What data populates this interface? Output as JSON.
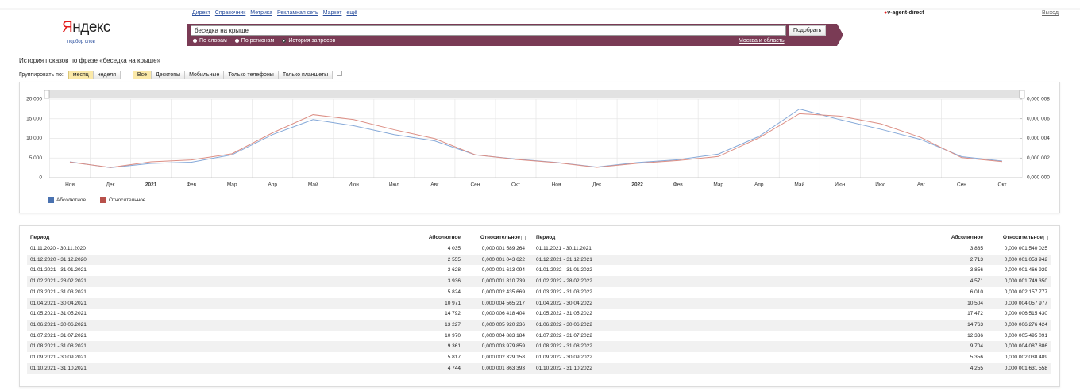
{
  "nav": {
    "links": [
      "Директ",
      "Справочник",
      "Метрика",
      "Рекламная сеть",
      "Маркет",
      "ещё"
    ],
    "user": "v-agent-direct",
    "logout": "Выход"
  },
  "logo": {
    "name": "Яндекс",
    "subtitle": "подбор слов"
  },
  "search": {
    "query": "беседка на крыше",
    "button": "Подобрать",
    "modes": [
      "По словам",
      "По регионам",
      "История запросов"
    ],
    "region": "Москва и область"
  },
  "heading": "История показов по фразе «беседка на крыше»",
  "grouping": {
    "label": "Группировать по:",
    "options": [
      "месяц",
      "неделя"
    ]
  },
  "devices": [
    "Все",
    "Десктопы",
    "Мобильные",
    "Только телефоны",
    "Только планшеты"
  ],
  "chart_data": {
    "type": "line",
    "categories": [
      "Ноя",
      "Дек",
      "2021",
      "Фев",
      "Мар",
      "Апр",
      "Май",
      "Июн",
      "Июл",
      "Авг",
      "Сен",
      "Окт",
      "Ноя",
      "Дек",
      "2022",
      "Фев",
      "Мар",
      "Апр",
      "Май",
      "Июн",
      "Июл",
      "Авг",
      "Сен",
      "Окт"
    ],
    "series": [
      {
        "name": "Абсолютное",
        "color": "#4a72b0",
        "line_color": "#86a9d8",
        "values": [
          4035,
          2555,
          3628,
          3936,
          5824,
          10971,
          14792,
          13227,
          10970,
          9361,
          5817,
          4744,
          3885,
          2713,
          3856,
          4571,
          6010,
          10504,
          17472,
          14763,
          12336,
          9704,
          5356,
          4255
        ]
      },
      {
        "name": "Относительное",
        "color": "#b8504a",
        "line_color": "#dc8e84",
        "axis": "y2",
        "values": [
          1.589264e-06,
          1.043622e-06,
          1.613094e-06,
          1.810739e-06,
          2.435669e-06,
          4.565217e-06,
          6.418404e-06,
          5.920236e-06,
          4.883184e-06,
          3.979859e-06,
          2.329158e-06,
          1.863393e-06,
          1.540025e-06,
          1.053942e-06,
          1.466929e-06,
          1.74935e-06,
          2.157777e-06,
          4.057977e-06,
          6.51543e-06,
          6.276424e-06,
          5.495091e-06,
          4.087886e-06,
          2.038489e-06,
          1.631558e-06
        ]
      }
    ],
    "ylim": [
      0,
      20000
    ],
    "yticks": [
      0,
      {
        "value": 5000,
        "label": "5 000"
      },
      {
        "value": 10000,
        "label": "10 000"
      },
      {
        "value": 15000,
        "label": "15 000"
      },
      {
        "value": 20000,
        "label": "20 000"
      }
    ],
    "y2lim": [
      0,
      8e-06
    ],
    "y2ticks": [
      {
        "value": 0,
        "label": "0,000 000"
      },
      {
        "value": 2e-06,
        "label": "0,000 002"
      },
      {
        "value": 4e-06,
        "label": "0,000 004"
      },
      {
        "value": 6e-06,
        "label": "0,000 006"
      },
      {
        "value": 8e-06,
        "label": "0,000 008"
      }
    ],
    "grid": true
  },
  "table": {
    "columns": [
      "Период",
      "Абсолютное",
      "Относительное"
    ],
    "rows": [
      [
        "01.11.2020 - 30.11.2020",
        "4 035",
        "0,000 001 589 264"
      ],
      [
        "01.12.2020 - 31.12.2020",
        "2 555",
        "0,000 001 043 622"
      ],
      [
        "01.01.2021 - 31.01.2021",
        "3 628",
        "0,000 001 613 094"
      ],
      [
        "01.02.2021 - 28.02.2021",
        "3 936",
        "0,000 001 810 739"
      ],
      [
        "01.03.2021 - 31.03.2021",
        "5 824",
        "0,000 002 435 669"
      ],
      [
        "01.04.2021 - 30.04.2021",
        "10 971",
        "0,000 004 565 217"
      ],
      [
        "01.05.2021 - 31.05.2021",
        "14 792",
        "0,000 006 418 404"
      ],
      [
        "01.06.2021 - 30.06.2021",
        "13 227",
        "0,000 005 920 236"
      ],
      [
        "01.07.2021 - 31.07.2021",
        "10 970",
        "0,000 004 883 184"
      ],
      [
        "01.08.2021 - 31.08.2021",
        "9 361",
        "0,000 003 979 859"
      ],
      [
        "01.09.2021 - 30.09.2021",
        "5 817",
        "0,000 002 329 158"
      ],
      [
        "01.10.2021 - 31.10.2021",
        "4 744",
        "0,000 001 863 393"
      ],
      [
        "01.11.2021 - 30.11.2021",
        "3 885",
        "0,000 001 540 025"
      ],
      [
        "01.12.2021 - 31.12.2021",
        "2 713",
        "0,000 001 053 942"
      ],
      [
        "01.01.2022 - 31.01.2022",
        "3 856",
        "0,000 001 466 929"
      ],
      [
        "01.02.2022 - 28.02.2022",
        "4 571",
        "0,000 001 749 350"
      ],
      [
        "01.03.2022 - 31.03.2022",
        "6 010",
        "0,000 002 157 777"
      ],
      [
        "01.04.2022 - 30.04.2022",
        "10 504",
        "0,000 004 057 977"
      ],
      [
        "01.05.2022 - 31.05.2022",
        "17 472",
        "0,000 006 515 430"
      ],
      [
        "01.06.2022 - 30.06.2022",
        "14 763",
        "0,000 006 276 424"
      ],
      [
        "01.07.2022 - 31.07.2022",
        "12 336",
        "0,000 005 495 091"
      ],
      [
        "01.08.2022 - 31.08.2022",
        "9 704",
        "0,000 004 087 886"
      ],
      [
        "01.09.2022 - 30.09.2022",
        "5 356",
        "0,000 002 038 489"
      ],
      [
        "01.10.2022 - 31.10.2022",
        "4 255",
        "0,000 001 631 558"
      ]
    ]
  }
}
